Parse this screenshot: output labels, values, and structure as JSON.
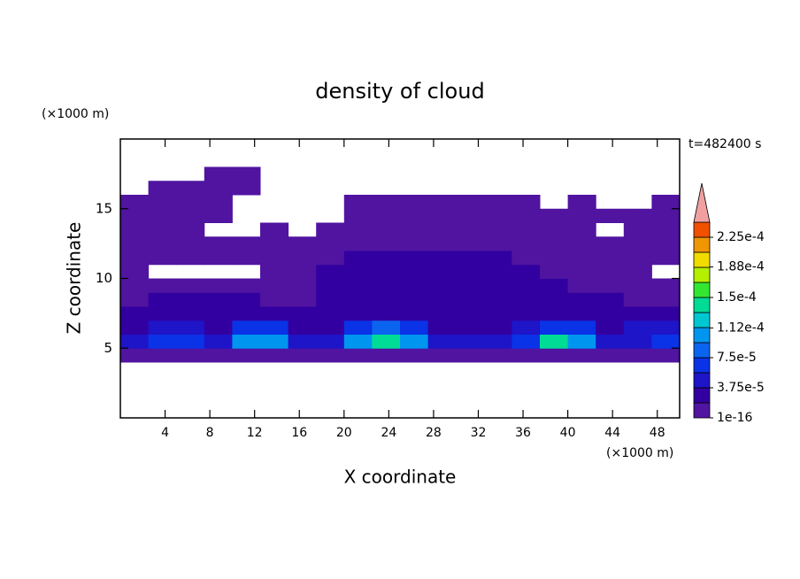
{
  "chart_data": {
    "type": "contour",
    "title": "density of cloud",
    "x_label": "X coordinate",
    "y_label": "Z coordinate",
    "x_unit": "(×1000 m)",
    "y_unit": "(×1000 m)",
    "time_label": "t=482400 s",
    "xlim": [
      0,
      50
    ],
    "ylim": [
      0,
      20
    ],
    "xticks": [
      4,
      8,
      12,
      16,
      20,
      24,
      28,
      32,
      36,
      40,
      44,
      48
    ],
    "yticks": [
      5,
      10,
      15
    ],
    "x": [
      1.25,
      3.75,
      6.25,
      8.75,
      11.25,
      13.75,
      16.25,
      18.75,
      21.25,
      23.75,
      26.25,
      28.75,
      31.25,
      33.75,
      36.25,
      38.75,
      41.25,
      43.75,
      46.25,
      48.75
    ],
    "y": [
      4.5,
      5.5,
      6.5,
      7.5,
      8.5,
      9.5,
      10.5,
      11.5,
      12.5,
      13.5,
      14.5,
      15.5,
      16.5,
      17.5
    ],
    "z": [
      [
        1e-05,
        1e-05,
        1e-05,
        1e-05,
        1e-05,
        1e-05,
        1e-05,
        1e-05,
        1e-05,
        1e-05,
        1e-05,
        1e-05,
        1e-05,
        1e-05,
        1e-05,
        1e-05,
        1e-05,
        1e-05,
        1e-05,
        1e-05
      ],
      [
        4e-05,
        6e-05,
        6e-05,
        5e-05,
        0.00011,
        0.0001,
        5e-05,
        4e-05,
        0.0001,
        0.00014,
        0.00011,
        5e-05,
        4e-05,
        4e-05,
        6e-05,
        0.00014,
        0.0001,
        4e-05,
        5e-05,
        7e-05
      ],
      [
        3e-05,
        4e-05,
        4e-05,
        3e-05,
        6e-05,
        6e-05,
        3e-05,
        3e-05,
        7e-05,
        8e-05,
        7e-05,
        3e-05,
        3e-05,
        3e-05,
        4e-05,
        7e-05,
        6e-05,
        3e-05,
        4e-05,
        5e-05
      ],
      [
        2e-05,
        3e-05,
        3e-05,
        3e-05,
        2e-05,
        2e-05,
        3e-05,
        2e-05,
        3e-05,
        3e-05,
        3e-05,
        2e-05,
        2e-05,
        3e-05,
        3e-05,
        3e-05,
        3e-05,
        2e-05,
        3e-05,
        3e-05
      ],
      [
        1e-05,
        2e-05,
        2e-05,
        2e-05,
        2e-05,
        1e-05,
        1e-05,
        2e-05,
        2e-05,
        2e-05,
        2e-05,
        2e-05,
        2e-05,
        2e-05,
        2e-05,
        2e-05,
        2e-05,
        2e-05,
        1e-05,
        1e-05
      ],
      [
        1e-05,
        1e-05,
        1e-05,
        1e-05,
        1e-05,
        1e-05,
        1e-05,
        2e-05,
        2e-05,
        2e-05,
        2e-05,
        2e-05,
        2e-05,
        2e-05,
        2e-05,
        2e-05,
        1e-05,
        1e-05,
        1e-05,
        1e-05
      ],
      [
        1e-05,
        null,
        null,
        null,
        null,
        1e-05,
        1e-05,
        2e-05,
        2e-05,
        2e-05,
        2e-05,
        2e-05,
        2e-05,
        2e-05,
        2e-05,
        1e-05,
        1e-05,
        1e-05,
        1e-05,
        null
      ],
      [
        1e-05,
        1e-05,
        1e-05,
        1e-05,
        1e-05,
        1e-05,
        1e-05,
        1e-05,
        2e-05,
        2e-05,
        2e-05,
        2e-05,
        2e-05,
        2e-05,
        1e-05,
        1e-05,
        1e-05,
        1e-05,
        1e-05,
        1e-05
      ],
      [
        1e-05,
        1e-05,
        1e-05,
        1e-05,
        1e-05,
        1e-05,
        1e-05,
        1e-05,
        1e-05,
        1e-05,
        1e-05,
        1e-05,
        1e-05,
        1e-05,
        1e-05,
        1e-05,
        1e-05,
        1e-05,
        1e-05,
        1e-05
      ],
      [
        1e-05,
        1e-05,
        1e-05,
        null,
        null,
        1e-05,
        null,
        1e-05,
        1e-05,
        1e-05,
        1e-05,
        1e-05,
        1e-05,
        1e-05,
        1e-05,
        1e-05,
        1e-05,
        null,
        1e-05,
        1e-05
      ],
      [
        1e-05,
        1e-05,
        1e-05,
        1e-05,
        null,
        null,
        null,
        null,
        1e-05,
        1e-05,
        1e-05,
        1e-05,
        1e-05,
        1e-05,
        1e-05,
        1e-05,
        1e-05,
        1e-05,
        1e-05,
        1e-05
      ],
      [
        1e-05,
        1e-05,
        1e-05,
        1e-05,
        null,
        null,
        null,
        null,
        1e-05,
        1e-05,
        1e-05,
        1e-05,
        1e-05,
        1e-05,
        1e-05,
        null,
        1e-05,
        null,
        null,
        1e-05
      ],
      [
        null,
        1e-05,
        1e-05,
        1e-05,
        1e-05,
        null,
        null,
        null,
        null,
        null,
        null,
        null,
        null,
        null,
        null,
        null,
        null,
        null,
        null,
        null
      ],
      [
        null,
        null,
        null,
        1e-05,
        1e-05,
        null,
        null,
        null,
        null,
        null,
        null,
        null,
        null,
        null,
        null,
        null,
        null,
        null,
        null,
        null
      ]
    ],
    "clim": [
      1e-16,
      0.00024375
    ],
    "colors": [
      "#5014a0",
      "#3200a0",
      "#1e14c8",
      "#0a32e6",
      "#0a64f0",
      "#0096f0",
      "#00c8d2",
      "#00dc96",
      "#32e632",
      "#b4f000",
      "#f0dc00",
      "#f09600",
      "#f05000"
    ],
    "over_color": "#f0a0a0",
    "colorbar_ticks": [
      {
        "value": 1e-16,
        "label": "1e-16"
      },
      {
        "value": 3.75e-05,
        "label": "3.75e-5"
      },
      {
        "value": 7.5e-05,
        "label": "7.5e-5"
      },
      {
        "value": 0.000112,
        "label": "1.12e-4"
      },
      {
        "value": 0.00015,
        "label": "1.5e-4"
      },
      {
        "value": 0.000188,
        "label": "1.88e-4"
      },
      {
        "value": 0.000225,
        "label": "2.25e-4"
      }
    ]
  }
}
